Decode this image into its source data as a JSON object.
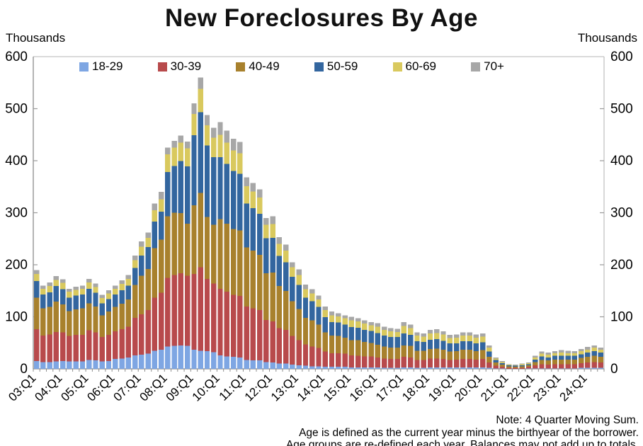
{
  "title": "New Foreclosures By Age",
  "axis": {
    "left_unit_label": "Thousands",
    "right_unit_label": "Thousands",
    "y_ticks": [
      0,
      100,
      200,
      300,
      400,
      500,
      600
    ],
    "y_max": 600
  },
  "notes": [
    "Note: 4 Quarter Moving Sum.",
    "Age is defined as the current year minus the birthyear of the borrower.",
    "Age groups are re-defined each year. Balances may not add up to totals."
  ],
  "chart_data": {
    "type": "bar",
    "stacked": true,
    "title": "New Foreclosures By Age",
    "xlabel": "",
    "ylabel": "Thousands",
    "ylim": [
      0,
      600
    ],
    "grid": false,
    "legend_position": "top",
    "x_tick_label_rule": "every Q1 (every 4th bar), rotated 45 degrees",
    "categories": [
      "03:Q1",
      "03:Q2",
      "03:Q3",
      "03:Q4",
      "04:Q1",
      "04:Q2",
      "04:Q3",
      "04:Q4",
      "05:Q1",
      "05:Q2",
      "05:Q3",
      "05:Q4",
      "06:Q1",
      "06:Q2",
      "06:Q3",
      "06:Q4",
      "07:Q1",
      "07:Q2",
      "07:Q3",
      "07:Q4",
      "08:Q1",
      "08:Q2",
      "08:Q3",
      "08:Q4",
      "09:Q1",
      "09:Q2",
      "09:Q3",
      "09:Q4",
      "10:Q1",
      "10:Q2",
      "10:Q3",
      "10:Q4",
      "11:Q1",
      "11:Q2",
      "11:Q3",
      "11:Q4",
      "12:Q1",
      "12:Q2",
      "12:Q3",
      "12:Q4",
      "13:Q1",
      "13:Q2",
      "13:Q3",
      "13:Q4",
      "14:Q1",
      "14:Q2",
      "14:Q3",
      "14:Q4",
      "15:Q1",
      "15:Q2",
      "15:Q3",
      "15:Q4",
      "16:Q1",
      "16:Q2",
      "16:Q3",
      "16:Q4",
      "17:Q1",
      "17:Q2",
      "17:Q3",
      "17:Q4",
      "18:Q1",
      "18:Q2",
      "18:Q3",
      "18:Q4",
      "19:Q1",
      "19:Q2",
      "19:Q3",
      "19:Q4",
      "20:Q1",
      "20:Q2",
      "20:Q3",
      "20:Q4",
      "21:Q1",
      "21:Q2",
      "21:Q3",
      "21:Q4",
      "22:Q1",
      "22:Q2",
      "22:Q3",
      "22:Q4",
      "23:Q1",
      "23:Q2",
      "23:Q3",
      "23:Q4",
      "24:Q1",
      "24:Q2",
      "24:Q3"
    ],
    "series": [
      {
        "name": "18-29",
        "color": "#7EA6E3",
        "values": [
          15,
          13,
          13,
          14,
          15,
          14,
          14,
          14,
          17,
          16,
          14,
          15,
          19,
          20,
          22,
          26,
          27,
          29,
          35,
          37,
          43,
          44,
          45,
          44,
          37,
          35,
          34,
          32,
          26,
          24,
          23,
          22,
          17,
          16,
          16,
          13,
          12,
          10,
          10,
          8,
          7,
          6,
          5,
          5,
          4,
          4,
          4,
          4,
          3,
          3,
          3,
          3,
          3,
          2,
          2,
          2,
          3,
          3,
          2,
          2,
          3,
          3,
          3,
          3,
          3,
          3,
          3,
          3,
          3,
          2,
          1,
          1,
          0,
          0,
          0,
          1,
          1,
          1,
          1,
          1,
          1,
          1,
          1,
          2,
          2,
          2,
          2
        ]
      },
      {
        "name": "30-39",
        "color": "#B84A4C",
        "values": [
          61,
          51,
          53,
          57,
          55,
          49,
          51,
          51,
          57,
          54,
          47,
          50,
          53,
          56,
          59,
          72,
          78,
          84,
          102,
          109,
          132,
          136,
          139,
          135,
          145,
          160,
          139,
          132,
          128,
          124,
          119,
          118,
          103,
          100,
          97,
          81,
          79,
          68,
          65,
          55,
          48,
          41,
          38,
          35,
          29,
          26,
          26,
          25,
          23,
          22,
          21,
          21,
          19,
          18,
          17,
          17,
          20,
          19,
          15,
          15,
          17,
          17,
          16,
          14,
          15,
          16,
          16,
          15,
          16,
          10,
          5,
          3,
          2,
          2,
          2,
          3,
          6,
          8,
          7,
          8,
          8,
          8,
          8,
          9,
          10,
          11,
          10
        ]
      },
      {
        "name": "40-49",
        "color": "#A8812D",
        "values": [
          61,
          52,
          53,
          58,
          54,
          48,
          49,
          51,
          52,
          50,
          42,
          45,
          47,
          49,
          52,
          63,
          74,
          79,
          95,
          102,
          118,
          120,
          115,
          100,
          132,
          143,
          119,
          113,
          134,
          131,
          127,
          126,
          113,
          111,
          106,
          90,
          94,
          81,
          75,
          67,
          60,
          51,
          50,
          45,
          37,
          34,
          33,
          31,
          29,
          30,
          28,
          26,
          24,
          23,
          22,
          22,
          22,
          22,
          18,
          18,
          18,
          19,
          18,
          16,
          16,
          18,
          18,
          16,
          17,
          11,
          6,
          4,
          3,
          2,
          3,
          3,
          6,
          8,
          8,
          9,
          9,
          9,
          9,
          10,
          11,
          12,
          11
        ]
      },
      {
        "name": "50-59",
        "color": "#33669F",
        "values": [
          32,
          27,
          28,
          30,
          29,
          26,
          27,
          27,
          28,
          26,
          23,
          24,
          24,
          26,
          27,
          33,
          39,
          42,
          51,
          54,
          85,
          90,
          100,
          110,
          135,
          155,
          137,
          130,
          119,
          115,
          111,
          109,
          85,
          82,
          79,
          67,
          67,
          58,
          55,
          47,
          46,
          39,
          37,
          34,
          29,
          26,
          26,
          25,
          25,
          24,
          23,
          23,
          23,
          21,
          20,
          20,
          23,
          21,
          18,
          17,
          18,
          18,
          17,
          16,
          15,
          16,
          16,
          15,
          15,
          10,
          5,
          3,
          2,
          2,
          2,
          2,
          5,
          7,
          6,
          7,
          7,
          7,
          7,
          7,
          8,
          9,
          8
        ]
      },
      {
        "name": "60-69",
        "color": "#D9C95E",
        "values": [
          13,
          11,
          12,
          12,
          12,
          11,
          11,
          11,
          12,
          11,
          10,
          11,
          11,
          12,
          13,
          15,
          17,
          18,
          22,
          24,
          34,
          35,
          36,
          35,
          41,
          45,
          39,
          37,
          43,
          41,
          40,
          39,
          33,
          32,
          31,
          26,
          26,
          23,
          22,
          18,
          19,
          16,
          15,
          14,
          14,
          13,
          12,
          12,
          13,
          12,
          12,
          11,
          12,
          11,
          11,
          10,
          14,
          13,
          11,
          10,
          12,
          12,
          12,
          10,
          11,
          11,
          11,
          11,
          11,
          8,
          3,
          2,
          1,
          1,
          2,
          2,
          4,
          5,
          5,
          5,
          6,
          5,
          5,
          6,
          6,
          7,
          6
        ]
      },
      {
        "name": "70+",
        "color": "#A7A7A7",
        "values": [
          8,
          6,
          7,
          7,
          7,
          6,
          6,
          6,
          7,
          7,
          6,
          6,
          6,
          7,
          7,
          9,
          10,
          10,
          13,
          14,
          13,
          13,
          13,
          13,
          20,
          22,
          20,
          19,
          24,
          23,
          22,
          22,
          17,
          16,
          16,
          13,
          15,
          13,
          12,
          10,
          11,
          9,
          8,
          8,
          7,
          7,
          6,
          6,
          7,
          6,
          6,
          6,
          7,
          6,
          6,
          6,
          8,
          7,
          6,
          6,
          7,
          7,
          6,
          6,
          6,
          6,
          6,
          6,
          6,
          4,
          2,
          2,
          1,
          1,
          1,
          1,
          3,
          4,
          4,
          4,
          5,
          5,
          4,
          4,
          5,
          4,
          4
        ]
      }
    ]
  }
}
